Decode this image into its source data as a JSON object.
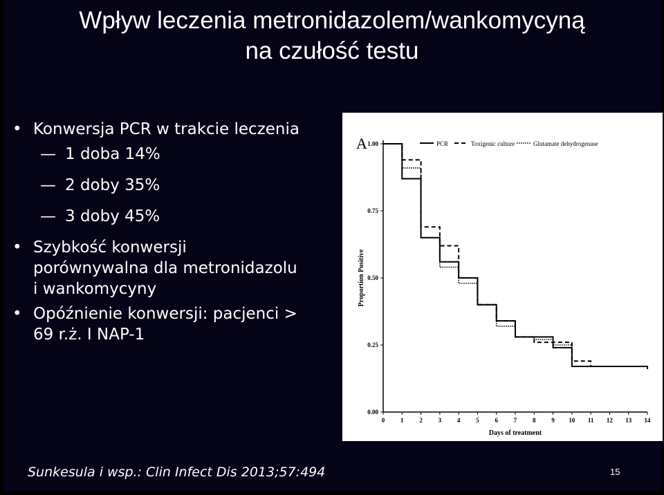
{
  "title": {
    "line1": "Wpływ leczenia metronidazolem/wankomycyną",
    "line2": "na czułość testu"
  },
  "bullets": {
    "b1": "Konwersja PCR w trakcie leczenia",
    "subs": [
      "1 doba 14%",
      "2 doby 35%",
      "3 doby 45%"
    ],
    "b2_l1": "Szybkość konwersji",
    "b2_l2": "porównywalna dla metronidazolu",
    "b2_l3": "i wankomycyny",
    "b3_l1": "Opóźnienie konwersji: pacjenci >",
    "b3_l2": "69 r.ż. I NAP-1",
    "bullet_glyph": "•",
    "dash_glyph": "—"
  },
  "footer": {
    "citation": "Sunkesula i wsp.: Clin Infect Dis  2013;57:494",
    "page": "15"
  },
  "chart_data": {
    "type": "line",
    "step": true,
    "panel_label": "A",
    "xlabel": "Days of treatment",
    "ylabel": "Proportion Positive",
    "xlim": [
      0,
      14
    ],
    "ylim": [
      0,
      1
    ],
    "x_ticks": [
      0,
      1,
      2,
      3,
      4,
      5,
      6,
      7,
      8,
      9,
      10,
      11,
      12,
      13,
      14
    ],
    "y_ticks": [
      "0.00",
      "0.25",
      "0.50",
      "0.75",
      "1.00"
    ],
    "x_tick_labels": [
      "0",
      "1",
      "2",
      "3",
      "4",
      "5",
      "6",
      "7",
      "8",
      "9",
      "10",
      "11",
      "12",
      "13",
      "14"
    ],
    "legend_position": "top",
    "series": [
      {
        "name": "PCR",
        "style": "solid",
        "x": [
          0,
          1,
          2,
          3,
          4,
          5,
          6,
          7,
          8,
          9,
          10,
          11,
          12,
          13,
          14
        ],
        "y": [
          1.0,
          0.87,
          0.65,
          0.56,
          0.5,
          0.4,
          0.34,
          0.28,
          0.28,
          0.24,
          0.17,
          0.17,
          0.17,
          0.17,
          0.16
        ]
      },
      {
        "name": "Toxigenic culture",
        "style": "dashed",
        "x": [
          0,
          1,
          2,
          3,
          4,
          5,
          6,
          7,
          8,
          9,
          10,
          11,
          12,
          13,
          14
        ],
        "y": [
          1.0,
          0.94,
          0.69,
          0.62,
          0.5,
          0.4,
          0.34,
          0.28,
          0.26,
          0.26,
          0.19,
          0.17,
          0.17,
          0.17,
          0.16
        ]
      },
      {
        "name": "Glutamate dehydrogenase",
        "style": "dotted",
        "x": [
          0,
          1,
          2,
          3,
          4,
          5,
          6,
          7,
          8,
          9,
          10,
          11,
          12,
          13,
          14
        ],
        "y": [
          1.0,
          0.91,
          0.65,
          0.54,
          0.48,
          0.4,
          0.32,
          0.28,
          0.27,
          0.25,
          0.17,
          0.17,
          0.17,
          0.17,
          0.16
        ]
      }
    ]
  }
}
